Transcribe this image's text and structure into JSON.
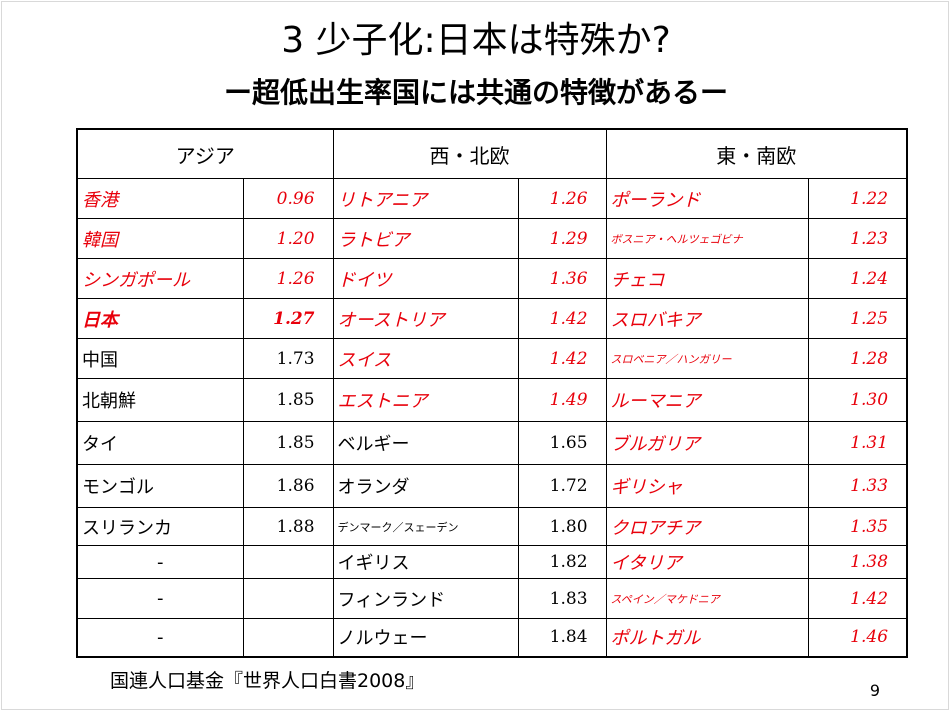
{
  "title": "3 少子化:日本は特殊か?",
  "subtitle": "ー超低出生率国には共通の特徴があるー",
  "table": {
    "headers": [
      "アジア",
      "西・北欧",
      "東・南欧"
    ],
    "rows": [
      [
        {
          "n": "香港",
          "v": "0.96"
        },
        {
          "n": "リトアニア",
          "v": "1.26"
        },
        {
          "n": "ポーランド",
          "v": "1.22"
        }
      ],
      [
        {
          "n": "韓国",
          "v": "1.20"
        },
        {
          "n": "ラトビア",
          "v": "1.29"
        },
        {
          "n": "ボスニア・ヘルツェゴビナ",
          "v": "1.23"
        }
      ],
      [
        {
          "n": "シンガポール",
          "v": "1.26"
        },
        {
          "n": "ドイツ",
          "v": "1.36"
        },
        {
          "n": "チェコ",
          "v": "1.24"
        }
      ],
      [
        {
          "n": "日本",
          "v": "1.27"
        },
        {
          "n": "オーストリア",
          "v": "1.42"
        },
        {
          "n": "スロバキア",
          "v": "1.25"
        }
      ],
      [
        {
          "n": "中国",
          "v": "1.73"
        },
        {
          "n": "スイス",
          "v": "1.42"
        },
        {
          "n": "スロベニア／ハンガリー",
          "v": "1.28"
        }
      ],
      [
        {
          "n": "北朝鮮",
          "v": "1.85"
        },
        {
          "n": "エストニア",
          "v": "1.49"
        },
        {
          "n": "ルーマニア",
          "v": "1.30"
        }
      ],
      [
        {
          "n": "タイ",
          "v": "1.85"
        },
        {
          "n": "ベルギー",
          "v": "1.65"
        },
        {
          "n": "ブルガリア",
          "v": "1.31"
        }
      ],
      [
        {
          "n": "モンゴル",
          "v": "1.86"
        },
        {
          "n": "オランダ",
          "v": "1.72"
        },
        {
          "n": "ギリシャ",
          "v": "1.33"
        }
      ],
      [
        {
          "n": "スリランカ",
          "v": "1.88"
        },
        {
          "n": "デンマーク／スェーデン",
          "v": "1.80"
        },
        {
          "n": "クロアチア",
          "v": "1.35"
        }
      ],
      [
        {
          "n": "-",
          "v": ""
        },
        {
          "n": "イギリス",
          "v": "1.82"
        },
        {
          "n": "イタリア",
          "v": "1.38"
        }
      ],
      [
        {
          "n": "-",
          "v": ""
        },
        {
          "n": "フィンランド",
          "v": "1.83"
        },
        {
          "n": "スペイン／マケドニア",
          "v": "1.42"
        }
      ],
      [
        {
          "n": "-",
          "v": ""
        },
        {
          "n": "ノルウェー",
          "v": "1.84"
        },
        {
          "n": "ポルトガル",
          "v": "1.46"
        }
      ]
    ]
  },
  "source": "国連人口基金『世界人口白書2008』",
  "page_number": "9",
  "colors": {
    "highlight": "#e8000b"
  }
}
